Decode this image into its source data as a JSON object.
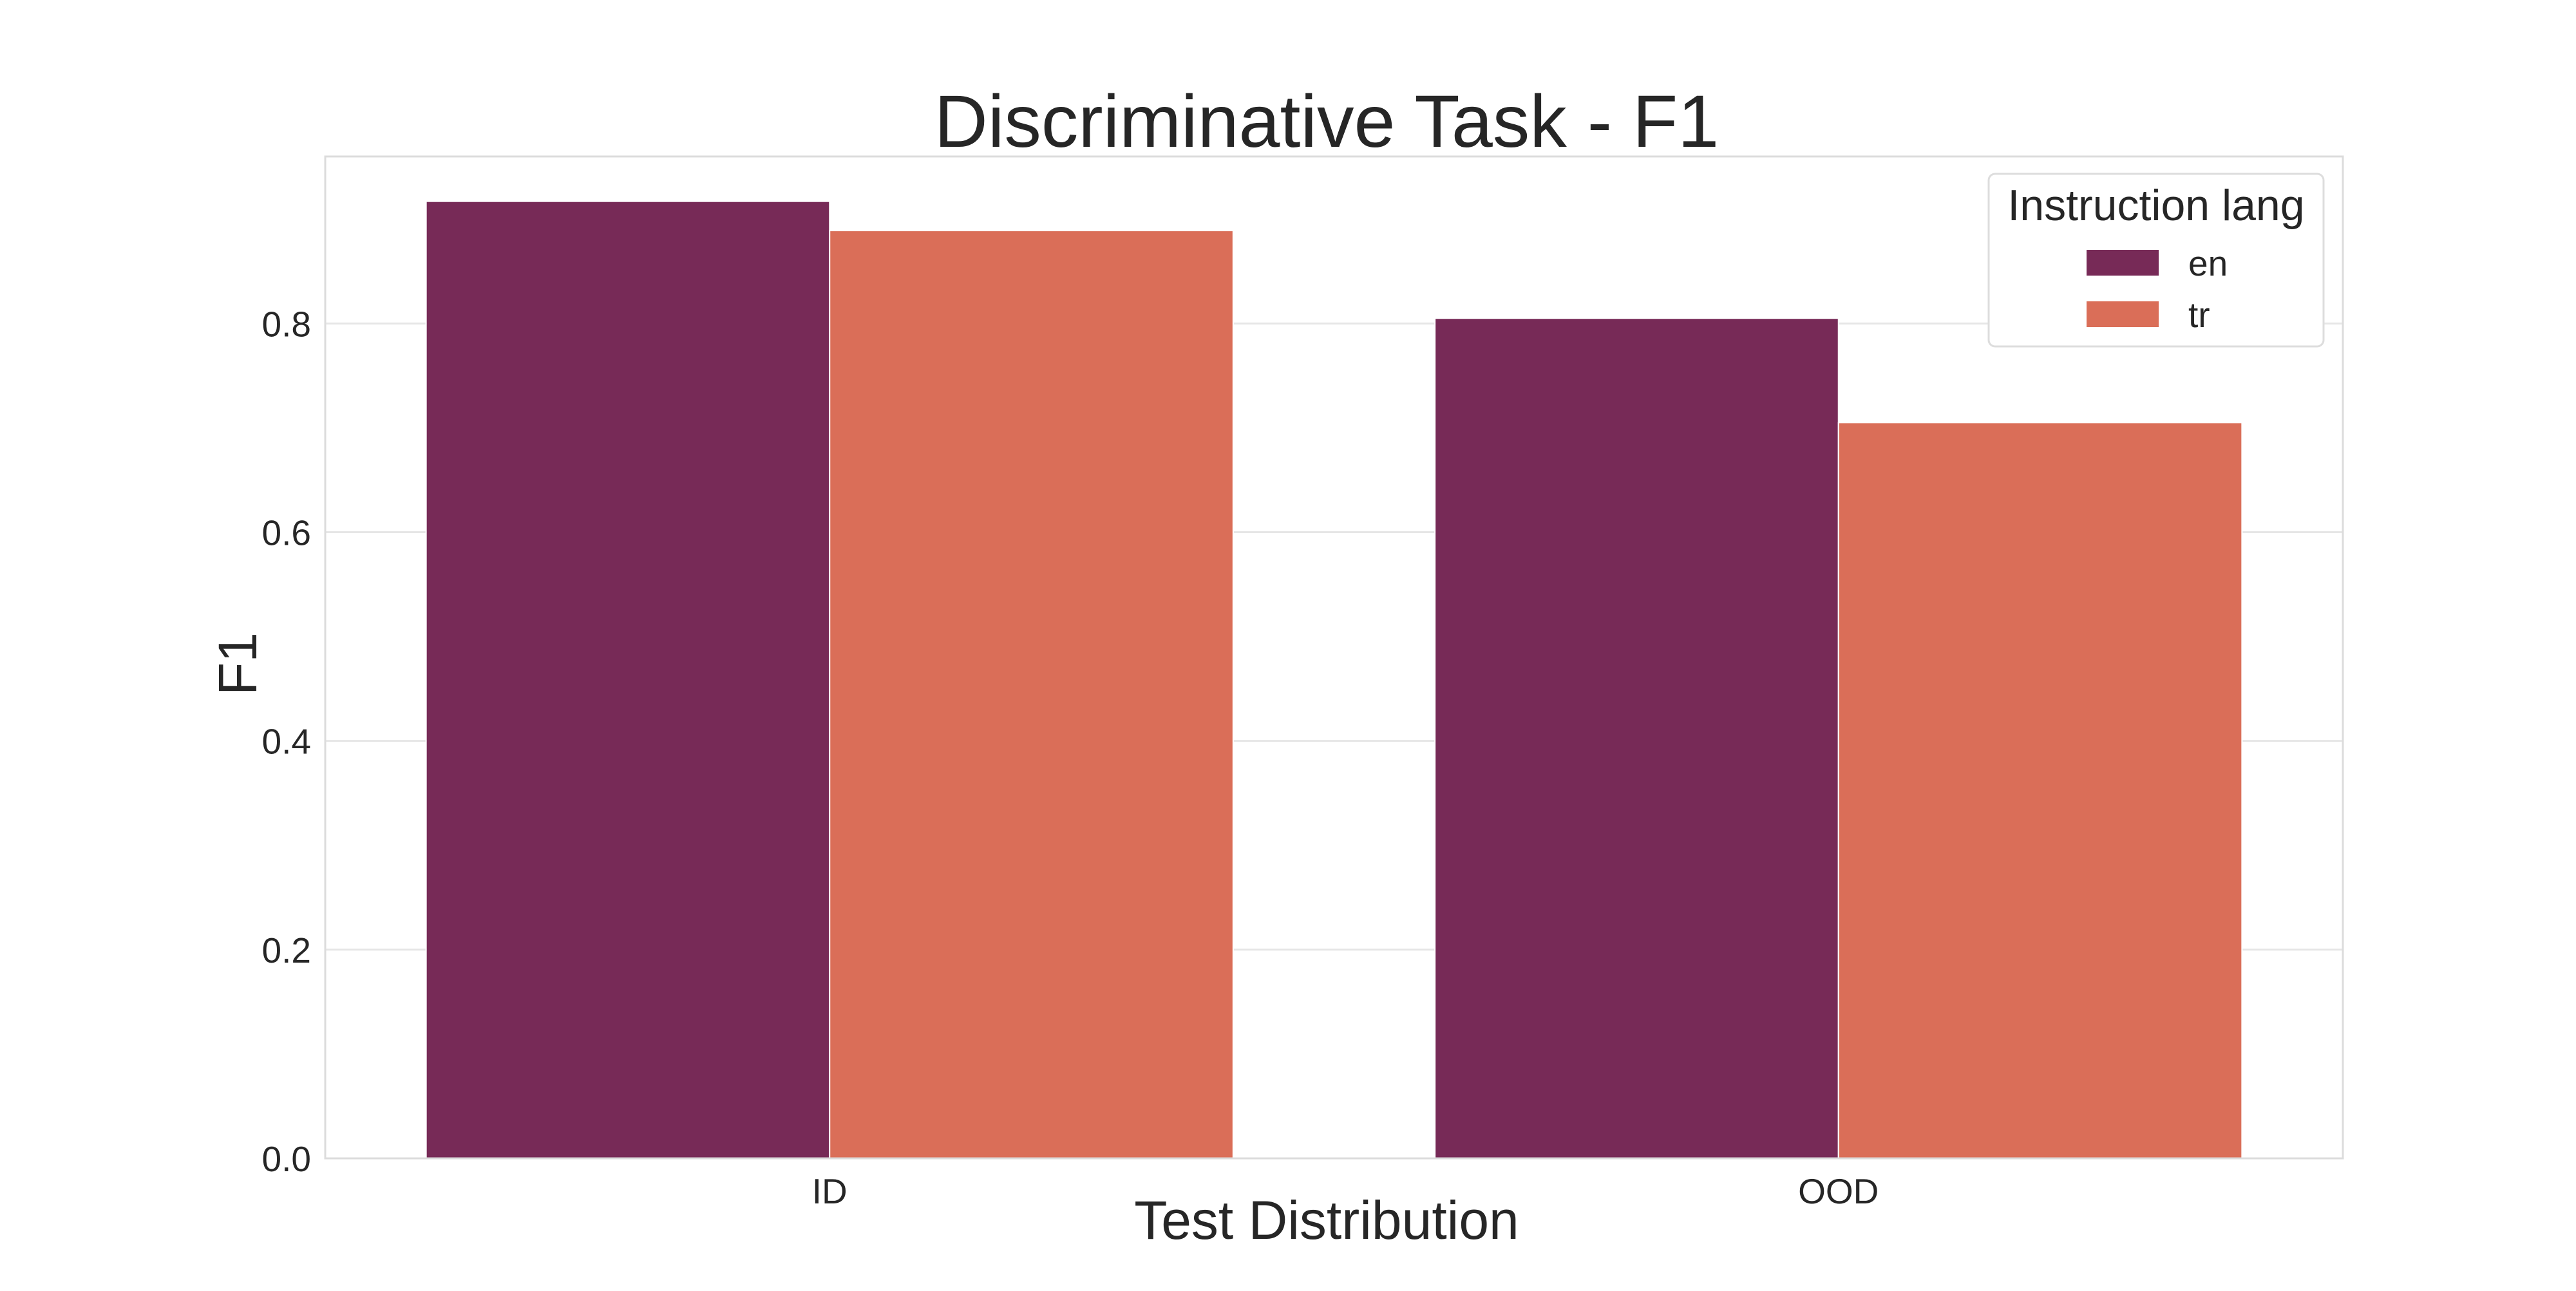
{
  "chart_data": {
    "type": "bar",
    "title": "Discriminative Task - F1",
    "xlabel": "Test Distribution",
    "ylabel": "F1",
    "categories": [
      "ID",
      "OOD"
    ],
    "series": [
      {
        "name": "en",
        "values": [
          0.917,
          0.805
        ],
        "color": "#772a57"
      },
      {
        "name": "tr",
        "values": [
          0.889,
          0.705
        ],
        "color": "#da6e58"
      }
    ],
    "ylim": [
      0,
      0.96
    ],
    "yticks": [
      0.0,
      0.2,
      0.4,
      0.6,
      0.8
    ],
    "ytick_labels": [
      "0.0",
      "0.2",
      "0.4",
      "0.6",
      "0.8"
    ],
    "grid": true,
    "legend": {
      "title": "Instruction lang",
      "placement": "top-right"
    }
  }
}
